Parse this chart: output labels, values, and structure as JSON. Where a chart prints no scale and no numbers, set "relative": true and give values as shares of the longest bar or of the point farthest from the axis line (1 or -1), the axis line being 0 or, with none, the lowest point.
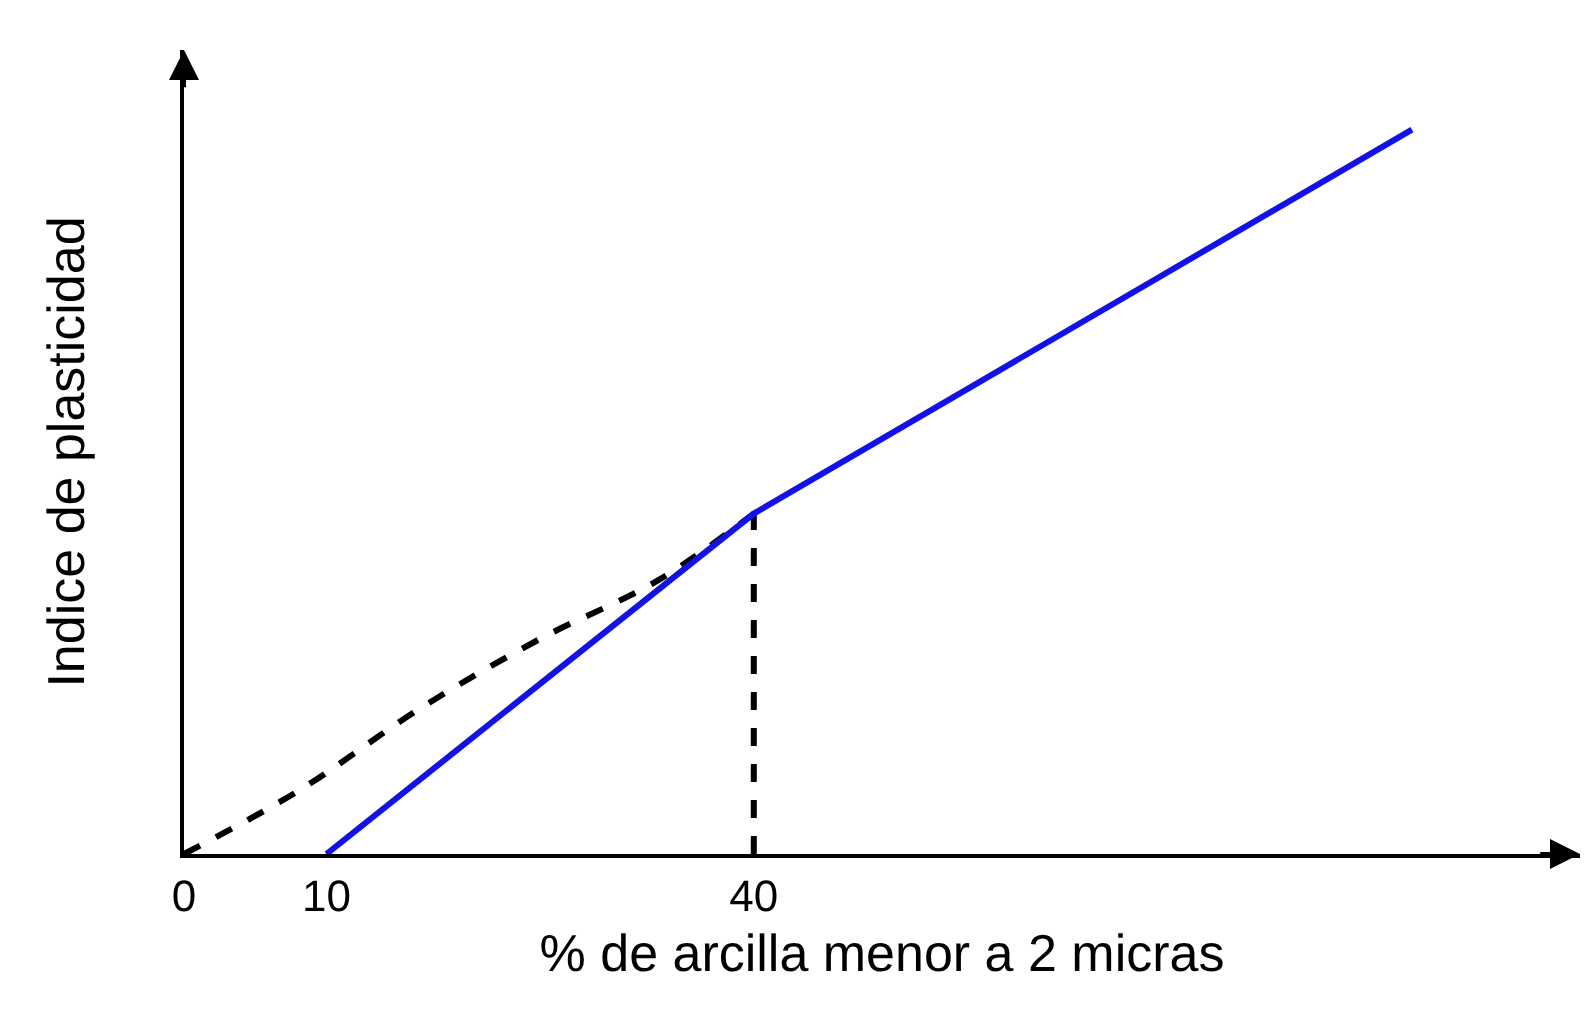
{
  "chart_data": {
    "type": "line",
    "xlabel": "% de arcilla menor a 2 micras",
    "ylabel": "Indice de plasticidad",
    "relative": true,
    "xlim": [
      0,
      98
    ],
    "xticks": [
      0,
      10,
      40
    ],
    "marker": "none",
    "series": [
      {
        "color": "#000000",
        "line_style": "dashed",
        "x": [
          0,
          8.1,
          16.5,
          24.9,
          33.3,
          40
        ],
        "values": [
          0,
          0.088,
          0.2,
          0.296,
          0.378,
          0.47
        ]
      },
      {
        "color": "#000000",
        "line_style": "dashed",
        "x": [
          40,
          40
        ],
        "values": [
          0,
          0.47
        ]
      },
      {
        "color": "#1010f0",
        "line_style": "solid",
        "x": [
          10,
          40,
          86.2
        ],
        "values": [
          0,
          0.47,
          1
        ]
      }
    ]
  }
}
